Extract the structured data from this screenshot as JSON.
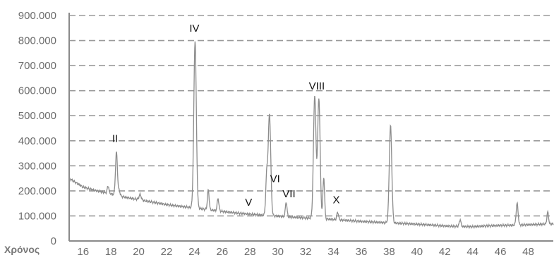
{
  "chart_data": {
    "type": "line",
    "title": "",
    "xlabel": "Χρόνος",
    "ylabel": "",
    "xlim": [
      15,
      49.8
    ],
    "ylim": [
      0,
      900000
    ],
    "grid": true,
    "y_ticks": [
      {
        "value": 0,
        "label": "0"
      },
      {
        "value": 100000,
        "label": "100.000"
      },
      {
        "value": 200000,
        "label": "200.000"
      },
      {
        "value": 300000,
        "label": "300.000"
      },
      {
        "value": 400000,
        "label": "400.000"
      },
      {
        "value": 500000,
        "label": "500.000"
      },
      {
        "value": 600000,
        "label": "600.000"
      },
      {
        "value": 700000,
        "label": "700.000"
      },
      {
        "value": 800000,
        "label": "800.000"
      },
      {
        "value": 900000,
        "label": "900.000"
      }
    ],
    "x_ticks": [
      {
        "value": 16,
        "label": "16"
      },
      {
        "value": 18,
        "label": "18"
      },
      {
        "value": 20,
        "label": "20"
      },
      {
        "value": 22,
        "label": "22"
      },
      {
        "value": 24,
        "label": "24"
      },
      {
        "value": 26,
        "label": "26"
      },
      {
        "value": 28,
        "label": "28"
      },
      {
        "value": 30,
        "label": "30"
      },
      {
        "value": 32,
        "label": "32"
      },
      {
        "value": 34,
        "label": "34"
      },
      {
        "value": 36,
        "label": "36"
      },
      {
        "value": 38,
        "label": "38"
      },
      {
        "value": 40,
        "label": "40"
      },
      {
        "value": 42,
        "label": "42"
      },
      {
        "value": 44,
        "label": "44"
      },
      {
        "value": 46,
        "label": "46"
      },
      {
        "value": 48,
        "label": "48"
      }
    ],
    "baseline": [
      [
        15,
        250000
      ],
      [
        16,
        215000
      ],
      [
        17,
        200000
      ],
      [
        18,
        188000
      ],
      [
        19,
        175000
      ],
      [
        20,
        165000
      ],
      [
        21,
        155000
      ],
      [
        22,
        145000
      ],
      [
        23,
        138000
      ],
      [
        24,
        132000
      ],
      [
        25,
        125000
      ],
      [
        26,
        118000
      ],
      [
        27,
        112000
      ],
      [
        28,
        107000
      ],
      [
        29,
        103000
      ],
      [
        30,
        99000
      ],
      [
        31,
        95000
      ],
      [
        32,
        92000
      ],
      [
        33,
        89000
      ],
      [
        34,
        86000
      ],
      [
        35,
        82000
      ],
      [
        36,
        78000
      ],
      [
        37,
        75000
      ],
      [
        38,
        72000
      ],
      [
        39,
        70000
      ],
      [
        40,
        67000
      ],
      [
        41,
        64000
      ],
      [
        42,
        60000
      ],
      [
        43,
        58000
      ],
      [
        44,
        57000
      ],
      [
        45,
        60000
      ],
      [
        46,
        62000
      ],
      [
        47,
        63000
      ],
      [
        48,
        65000
      ],
      [
        49,
        67000
      ],
      [
        49.8,
        68000
      ]
    ],
    "peaks": [
      {
        "x": 17.8,
        "y": 220000,
        "w": 0.06
      },
      {
        "x": 18.4,
        "y": 355000,
        "w": 0.07
      },
      {
        "x": 18.6,
        "y": 200000,
        "w": 0.06
      },
      {
        "x": 20.1,
        "y": 185000,
        "w": 0.08
      },
      {
        "x": 24.05,
        "y": 800000,
        "w": 0.09
      },
      {
        "x": 25.0,
        "y": 205000,
        "w": 0.06
      },
      {
        "x": 25.7,
        "y": 170000,
        "w": 0.06
      },
      {
        "x": 29.2,
        "y": 255000,
        "w": 0.07
      },
      {
        "x": 29.4,
        "y": 505000,
        "w": 0.09
      },
      {
        "x": 30.6,
        "y": 155000,
        "w": 0.06
      },
      {
        "x": 32.65,
        "y": 580000,
        "w": 0.09
      },
      {
        "x": 32.95,
        "y": 570000,
        "w": 0.09
      },
      {
        "x": 33.3,
        "y": 255000,
        "w": 0.06
      },
      {
        "x": 34.3,
        "y": 115000,
        "w": 0.06
      },
      {
        "x": 38.1,
        "y": 460000,
        "w": 0.09
      },
      {
        "x": 43.1,
        "y": 85000,
        "w": 0.06
      },
      {
        "x": 47.2,
        "y": 150000,
        "w": 0.07
      },
      {
        "x": 49.4,
        "y": 115000,
        "w": 0.06
      }
    ],
    "annotations": [
      {
        "text": "II",
        "x": 18.3,
        "y": 395000
      },
      {
        "text": "IV",
        "x": 24.0,
        "y": 835000
      },
      {
        "text": "V",
        "x": 27.9,
        "y": 140000
      },
      {
        "text": "VI",
        "x": 29.8,
        "y": 235000
      },
      {
        "text": "VII",
        "x": 30.8,
        "y": 175000
      },
      {
        "text": "VIII",
        "x": 32.8,
        "y": 605000
      },
      {
        "text": "X",
        "x": 34.2,
        "y": 150000
      }
    ]
  }
}
